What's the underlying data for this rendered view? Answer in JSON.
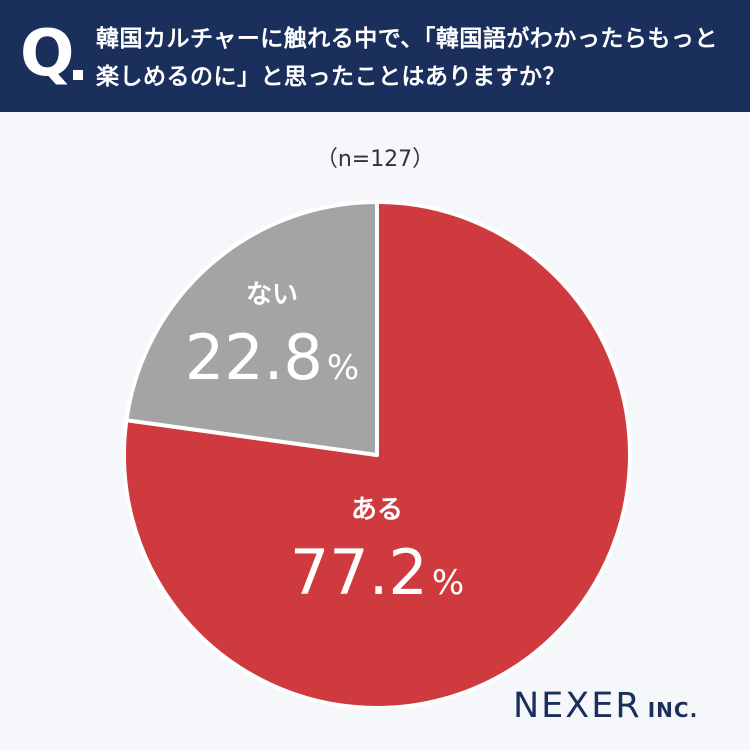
{
  "header": {
    "q_mark": "Q",
    "question": "韓国カルチャーに触れる中で、「韓国語がわかったらもっと楽しめるのに」と思ったことはありますか？",
    "background_color": "#1b2f5c"
  },
  "sample_label": "（n=127）",
  "chart_data": {
    "type": "pie",
    "title": "",
    "series": [
      {
        "labels": [
          "ある",
          "ない"
        ],
        "values": [
          77.2,
          22.8
        ],
        "value_texts": [
          "77.2",
          "22.8"
        ],
        "unit": "%",
        "colors": [
          "#cf3a3f",
          "#a4a4a4"
        ]
      }
    ],
    "start_angle_deg": 0,
    "direction": "clockwise"
  },
  "logo": {
    "name": "NEXER",
    "suffix": "INC."
  }
}
